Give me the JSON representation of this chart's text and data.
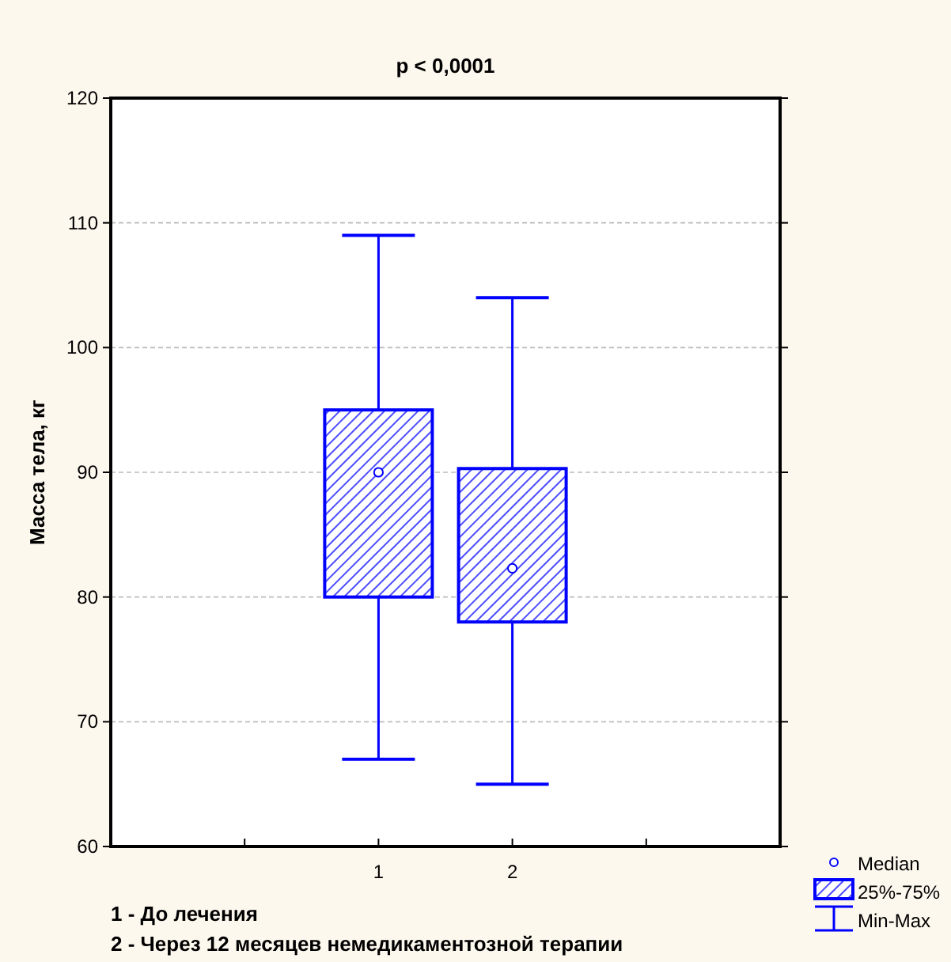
{
  "chart_data": {
    "type": "box",
    "title": "p < 0,0001",
    "ylabel": "Масса тела, кг",
    "categories": [
      "1",
      "2"
    ],
    "boxes": [
      {
        "low": 67,
        "q1": 80,
        "median": 90,
        "q3": 95,
        "high": 109
      },
      {
        "low": 65,
        "q1": 78,
        "median": 82.3,
        "q3": 90.3,
        "high": 104
      }
    ],
    "color": "#0000ff",
    "ylim": [
      60,
      120
    ],
    "yticks": [
      60,
      70,
      80,
      90,
      100,
      110,
      120
    ],
    "grid": "y",
    "marker": "circle",
    "annotations": [
      "1 - До лечения",
      "2 - Через 12 месяцев немедикаментозной терапии",
      "Median",
      "25%-75%",
      "Min-Max"
    ]
  }
}
